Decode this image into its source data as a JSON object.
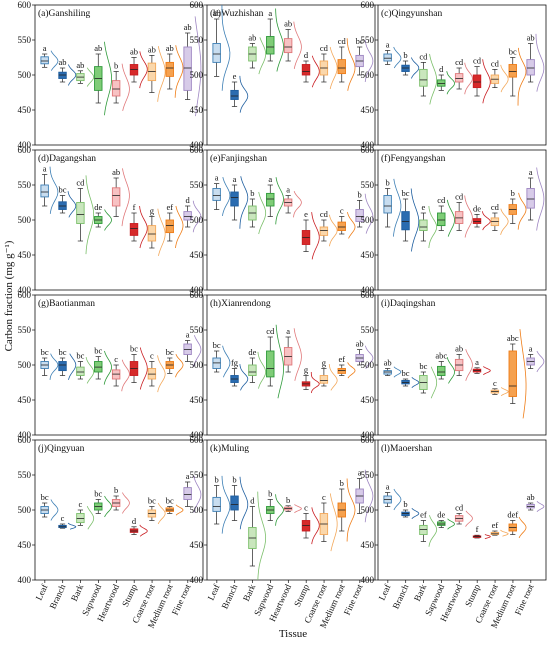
{
  "chart_data": {
    "type": "box",
    "xlabel": "Tissue",
    "ylabel": "Carbon fraction (mg g⁻¹)",
    "ylim": [
      400,
      600
    ],
    "yticks": [
      400,
      450,
      500,
      550,
      600
    ],
    "categories": [
      "Leaf",
      "Branch",
      "Bark",
      "Sapwood",
      "Heartwood",
      "Stump",
      "Coarse root",
      "Medium root",
      "Fine root"
    ],
    "colors": [
      "#3d7fb5",
      "#1f5fa0",
      "#7bbf6a",
      "#2e9a3a",
      "#e0787a",
      "#c91d22",
      "#f3a85a",
      "#ef7d17",
      "#9e86c2"
    ],
    "fill_colors": [
      "#c8ddef",
      "#2b6cb0",
      "#c9e6bd",
      "#7fcc77",
      "#f7c2c3",
      "#d62a2a",
      "#fad7ab",
      "#f5a14f",
      "#d7cbe8"
    ],
    "panels": [
      {
        "title": "(a)Ganshiling",
        "boxes": [
          [
            511,
            516,
            520,
            526,
            530
          ],
          [
            490,
            495,
            500,
            504,
            510
          ],
          [
            488,
            492,
            497,
            502,
            506
          ],
          [
            460,
            478,
            495,
            512,
            530
          ],
          [
            460,
            470,
            480,
            492,
            505
          ],
          [
            490,
            500,
            508,
            515,
            525
          ],
          [
            475,
            492,
            505,
            517,
            528
          ],
          [
            480,
            498,
            510,
            518,
            530
          ],
          [
            465,
            478,
            510,
            540,
            560
          ]
        ],
        "letters": [
          "a",
          "ab",
          "ab",
          "ab",
          "b",
          "ab",
          "ab",
          "ab",
          "ab"
        ]
      },
      {
        "title": "(b)Wuzhishan",
        "boxes": [
          [
            498,
            518,
            530,
            545,
            580
          ],
          [
            455,
            465,
            470,
            478,
            490
          ],
          [
            510,
            520,
            530,
            540,
            545
          ],
          [
            520,
            530,
            540,
            555,
            580
          ],
          [
            520,
            532,
            540,
            552,
            565
          ],
          [
            490,
            500,
            505,
            515,
            520
          ],
          [
            490,
            500,
            510,
            520,
            530
          ],
          [
            490,
            502,
            510,
            522,
            540
          ],
          [
            500,
            512,
            520,
            528,
            540
          ]
        ],
        "letters": [
          "ab",
          "e",
          "ab",
          "a",
          "ab",
          "d",
          "cd",
          "cd",
          "bc"
        ]
      },
      {
        "title": "(c)Qingyunshan",
        "boxes": [
          [
            515,
            520,
            524,
            530,
            535
          ],
          [
            500,
            505,
            510,
            514,
            520
          ],
          [
            470,
            484,
            493,
            508,
            518
          ],
          [
            478,
            484,
            488,
            493,
            500
          ],
          [
            480,
            490,
            495,
            502,
            510
          ],
          [
            470,
            482,
            490,
            500,
            512
          ],
          [
            482,
            488,
            494,
            500,
            508
          ],
          [
            470,
            497,
            505,
            515,
            525
          ],
          [
            490,
            500,
            510,
            522,
            545
          ]
        ],
        "letters": [
          "a",
          "b",
          "cd",
          "d",
          "cd",
          "cd",
          "cd",
          "bc",
          "ab"
        ]
      },
      {
        "title": "(d)Dagangshan",
        "boxes": [
          [
            520,
            533,
            540,
            550,
            565
          ],
          [
            510,
            515,
            520,
            526,
            535
          ],
          [
            470,
            495,
            508,
            525,
            545
          ],
          [
            490,
            495,
            500,
            505,
            510
          ],
          [
            505,
            520,
            535,
            546,
            560
          ],
          [
            470,
            478,
            488,
            495,
            510
          ],
          [
            460,
            470,
            480,
            492,
            505
          ],
          [
            470,
            482,
            492,
            500,
            510
          ],
          [
            490,
            500,
            505,
            512,
            520
          ]
        ],
        "letters": [
          "a",
          "bc",
          "cd",
          "de",
          "ab",
          "f",
          "g",
          "ef",
          "d"
        ]
      },
      {
        "title": "(e)Fanjingshan",
        "boxes": [
          [
            515,
            528,
            535,
            545,
            552
          ],
          [
            500,
            520,
            532,
            540,
            550
          ],
          [
            490,
            500,
            510,
            520,
            530
          ],
          [
            505,
            520,
            530,
            538,
            550
          ],
          [
            510,
            520,
            525,
            530,
            535
          ],
          [
            455,
            465,
            475,
            485,
            500
          ],
          [
            470,
            478,
            485,
            490,
            500
          ],
          [
            480,
            485,
            490,
            497,
            505
          ],
          [
            490,
            498,
            505,
            515,
            528
          ]
        ],
        "letters": [
          "a",
          "a",
          "b",
          "a",
          "a",
          "e",
          "cd",
          "c",
          "b"
        ]
      },
      {
        "title": "(f)Fengyangshan",
        "boxes": [
          [
            490,
            510,
            520,
            535,
            545
          ],
          [
            470,
            486,
            498,
            512,
            530
          ],
          [
            470,
            485,
            490,
            500,
            510
          ],
          [
            485,
            492,
            500,
            510,
            520
          ],
          [
            485,
            495,
            503,
            512,
            525
          ],
          [
            490,
            495,
            498,
            502,
            508
          ],
          [
            485,
            492,
            498,
            503,
            510
          ],
          [
            495,
            508,
            515,
            522,
            530
          ],
          [
            500,
            517,
            530,
            545,
            560
          ]
        ],
        "letters": [
          "b",
          "bc",
          "e",
          "cd",
          "cd",
          "de",
          "cd",
          "b",
          "a"
        ]
      },
      {
        "title": "(g)Baotianman",
        "boxes": [
          [
            485,
            495,
            500,
            505,
            510
          ],
          [
            485,
            492,
            500,
            505,
            510
          ],
          [
            480,
            485,
            490,
            497,
            505
          ],
          [
            480,
            490,
            497,
            505,
            512
          ],
          [
            470,
            480,
            487,
            493,
            500
          ],
          [
            475,
            485,
            495,
            505,
            515
          ],
          [
            470,
            480,
            487,
            495,
            505
          ],
          [
            488,
            495,
            500,
            505,
            510
          ],
          [
            505,
            515,
            522,
            530,
            535
          ]
        ],
        "letters": [
          "bc",
          "bc",
          "bc",
          "bc",
          "c",
          "bc",
          "c",
          "bc",
          "a"
        ]
      },
      {
        "title": "(h)Xianrendong",
        "boxes": [
          [
            490,
            495,
            503,
            510,
            520
          ],
          [
            470,
            475,
            480,
            485,
            495
          ],
          [
            475,
            485,
            490,
            500,
            510
          ],
          [
            470,
            483,
            495,
            520,
            540
          ],
          [
            490,
            500,
            512,
            525,
            540
          ],
          [
            465,
            470,
            473,
            476,
            485
          ],
          [
            470,
            474,
            478,
            485,
            495
          ],
          [
            485,
            488,
            492,
            495,
            500
          ],
          [
            500,
            505,
            510,
            515,
            522
          ]
        ],
        "letters": [
          "bc",
          "fg",
          "de",
          "cd",
          "a",
          "g",
          "g",
          "ef",
          "ab"
        ]
      },
      {
        "title": "(i)Daqingshan",
        "boxes": [
          [
            485,
            487,
            490,
            492,
            495
          ],
          [
            470,
            473,
            475,
            478,
            480
          ],
          [
            460,
            465,
            475,
            485,
            490
          ],
          [
            480,
            485,
            490,
            498,
            505
          ],
          [
            485,
            492,
            500,
            508,
            515
          ],
          [
            488,
            490,
            492,
            494,
            496
          ],
          [
            458,
            460,
            462,
            464,
            466
          ],
          [
            445,
            455,
            470,
            520,
            530
          ],
          [
            495,
            500,
            505,
            510,
            515
          ]
        ],
        "letters": [
          "ab",
          "bc",
          "bc",
          "abc",
          "ab",
          "a",
          "c",
          "abc",
          "a"
        ]
      },
      {
        "title": "(j)Qingyuan",
        "boxes": [
          [
            490,
            495,
            500,
            505,
            510
          ],
          [
            474,
            475,
            476,
            478,
            480
          ],
          [
            478,
            482,
            488,
            495,
            500
          ],
          [
            495,
            500,
            505,
            510,
            515
          ],
          [
            500,
            505,
            510,
            515,
            520
          ],
          [
            465,
            468,
            470,
            473,
            476
          ],
          [
            485,
            490,
            495,
            500,
            505
          ],
          [
            495,
            498,
            500,
            503,
            505
          ],
          [
            505,
            515,
            522,
            532,
            540
          ]
        ],
        "letters": [
          "bc",
          "c",
          "c",
          "bc",
          "b",
          "d",
          "bc",
          "bc",
          "a"
        ]
      },
      {
        "title": "(k)Muling",
        "boxes": [
          [
            480,
            498,
            505,
            518,
            535
          ],
          [
            485,
            500,
            508,
            520,
            535
          ],
          [
            420,
            445,
            460,
            475,
            505
          ],
          [
            485,
            495,
            500,
            505,
            515
          ],
          [
            498,
            500,
            502,
            504,
            506
          ],
          [
            460,
            470,
            478,
            485,
            495
          ],
          [
            455,
            465,
            480,
            495,
            510
          ],
          [
            470,
            490,
            500,
            510,
            530
          ],
          [
            495,
            510,
            520,
            530,
            545
          ]
        ],
        "letters": [
          "b",
          "b",
          "d",
          "b",
          "b",
          "c",
          "c",
          "b",
          "a"
        ]
      },
      {
        "title": "(l)Maoershan",
        "boxes": [
          [
            505,
            510,
            515,
            520,
            525
          ],
          [
            490,
            492,
            495,
            497,
            500
          ],
          [
            455,
            465,
            472,
            478,
            485
          ],
          [
            475,
            478,
            480,
            483,
            485
          ],
          [
            480,
            484,
            488,
            492,
            495
          ],
          [
            460,
            461,
            462,
            463,
            464
          ],
          [
            464,
            465,
            466,
            468,
            470
          ],
          [
            465,
            470,
            475,
            480,
            485
          ],
          [
            500,
            503,
            505,
            508,
            510
          ]
        ],
        "letters": [
          "a",
          "b",
          "ef",
          "de",
          "cd",
          "f",
          "ef",
          "def",
          "ab"
        ]
      }
    ]
  }
}
